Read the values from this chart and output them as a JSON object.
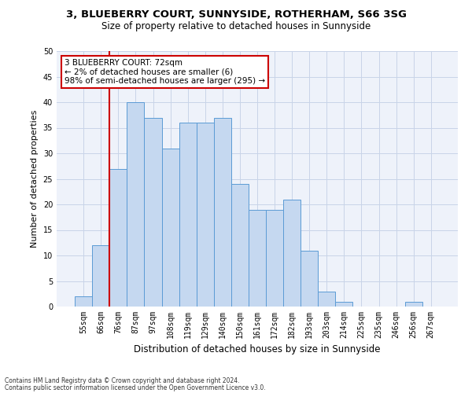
{
  "title_line1": "3, BLUEBERRY COURT, SUNNYSIDE, ROTHERHAM, S66 3SG",
  "title_line2": "Size of property relative to detached houses in Sunnyside",
  "xlabel": "Distribution of detached houses by size in Sunnyside",
  "ylabel": "Number of detached properties",
  "bar_labels": [
    "55sqm",
    "66sqm",
    "76sqm",
    "87sqm",
    "97sqm",
    "108sqm",
    "119sqm",
    "129sqm",
    "140sqm",
    "150sqm",
    "161sqm",
    "172sqm",
    "182sqm",
    "193sqm",
    "203sqm",
    "214sqm",
    "225sqm",
    "235sqm",
    "246sqm",
    "256sqm",
    "267sqm"
  ],
  "bar_values": [
    2,
    12,
    27,
    40,
    37,
    31,
    36,
    36,
    37,
    24,
    19,
    19,
    21,
    11,
    3,
    1,
    0,
    0,
    0,
    1,
    0
  ],
  "bar_color": "#c5d8f0",
  "bar_edge_color": "#5b9bd5",
  "grid_color": "#c8d4e8",
  "bg_color": "#eef2fa",
  "vline_color": "#cc0000",
  "vline_x_index": 1.5,
  "annotation_text": "3 BLUEBERRY COURT: 72sqm\n← 2% of detached houses are smaller (6)\n98% of semi-detached houses are larger (295) →",
  "annotation_box_color": "#ffffff",
  "annotation_box_edge": "#cc0000",
  "footer_line1": "Contains HM Land Registry data © Crown copyright and database right 2024.",
  "footer_line2": "Contains public sector information licensed under the Open Government Licence v3.0.",
  "ylim": [
    0,
    50
  ],
  "yticks": [
    0,
    5,
    10,
    15,
    20,
    25,
    30,
    35,
    40,
    45,
    50
  ],
  "title1_fontsize": 9.5,
  "title2_fontsize": 8.5,
  "ylabel_fontsize": 8,
  "xlabel_fontsize": 8.5,
  "tick_fontsize": 7,
  "footer_fontsize": 5.5,
  "annot_fontsize": 7.5
}
